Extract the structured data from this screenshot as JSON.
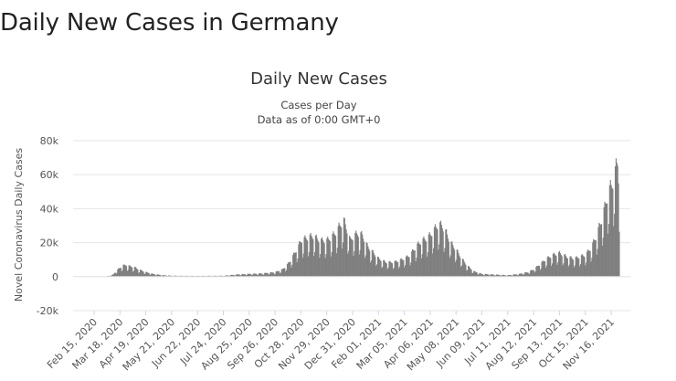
{
  "page": {
    "heading": "Daily New Cases in Germany"
  },
  "chart_data": {
    "type": "bar",
    "title": "Daily New Cases",
    "subtitle": "Cases per Day",
    "subtitle2": "Data as of 0:00 GMT+0",
    "ylabel": "Novel Coronavirus Daily Cases",
    "xlabel": "",
    "ylim": [
      -20000,
      80000
    ],
    "yticks": [
      -20000,
      0,
      20000,
      40000,
      60000,
      80000
    ],
    "ytick_labels": [
      "-20k",
      "0",
      "20k",
      "40k",
      "60k",
      "80k"
    ],
    "xtick_labels": [
      "Feb 15, 2020",
      "Mar 18, 2020",
      "Apr 19, 2020",
      "May 21, 2020",
      "Jun 22, 2020",
      "Jul 24, 2020",
      "Aug 25, 2020",
      "Sep 26, 2020",
      "Oct 28, 2020",
      "Nov 29, 2020",
      "Dec 31, 2020",
      "Feb 01, 2021",
      "Mar 05, 2021",
      "Apr 06, 2021",
      "May 08, 2021",
      "Jun 09, 2021",
      "Jul 11, 2021",
      "Aug 12, 2021",
      "Sep 13, 2021",
      "Oct 15, 2021",
      "Nov 16, 2021"
    ],
    "grid": true,
    "bar_color": "#7f7f7f",
    "x": [
      "Feb 15, 2020",
      "Mar 01, 2020",
      "Mar 09, 2020",
      "Mar 13, 2020",
      "Mar 18, 2020",
      "Mar 21, 2020",
      "Mar 25, 2020",
      "Mar 28, 2020",
      "Apr 02, 2020",
      "Apr 06, 2020",
      "Apr 10, 2020",
      "Apr 19, 2020",
      "Apr 28, 2020",
      "May 10, 2020",
      "May 21, 2020",
      "Jun 22, 2020",
      "Jul 24, 2020",
      "Aug 10, 2020",
      "Aug 25, 2020",
      "Sep 10, 2020",
      "Sep 26, 2020",
      "Oct 05, 2020",
      "Oct 10, 2020",
      "Oct 15, 2020",
      "Oct 20, 2020",
      "Oct 25, 2020",
      "Oct 28, 2020",
      "Nov 02, 2020",
      "Nov 07, 2020",
      "Nov 12, 2020",
      "Nov 17, 2020",
      "Nov 22, 2020",
      "Nov 29, 2020",
      "Dec 05, 2020",
      "Dec 11, 2020",
      "Dec 16, 2020",
      "Dec 20, 2020",
      "Dec 24, 2020",
      "Dec 28, 2020",
      "Dec 31, 2020",
      "Jan 06, 2021",
      "Jan 12, 2021",
      "Jan 18, 2021",
      "Jan 24, 2021",
      "Feb 01, 2021",
      "Feb 10, 2021",
      "Feb 20, 2021",
      "Mar 05, 2021",
      "Mar 12, 2021",
      "Mar 20, 2021",
      "Mar 27, 2021",
      "Apr 01, 2021",
      "Apr 06, 2021",
      "Apr 11, 2021",
      "Apr 16, 2021",
      "Apr 21, 2021",
      "Apr 26, 2021",
      "May 01, 2021",
      "May 08, 2021",
      "May 15, 2021",
      "May 22, 2021",
      "May 30, 2021",
      "Jun 09, 2021",
      "Jul 11, 2021",
      "Jul 25, 2021",
      "Aug 05, 2021",
      "Aug 12, 2021",
      "Aug 20, 2021",
      "Aug 28, 2021",
      "Sep 05, 2021",
      "Sep 13, 2021",
      "Sep 22, 2021",
      "Oct 01, 2021",
      "Oct 08, 2021",
      "Oct 15, 2021",
      "Oct 22, 2021",
      "Oct 28, 2021",
      "Nov 03, 2021",
      "Nov 08, 2021",
      "Nov 12, 2021",
      "Nov 16, 2021",
      "Nov 19, 2021",
      "Nov 22, 2021",
      "Nov 24, 2021",
      "Nov 26, 2021"
    ],
    "values": [
      0,
      100,
      1000,
      3000,
      5000,
      6000,
      6500,
      6000,
      5500,
      5000,
      4000,
      2500,
      1500,
      800,
      500,
      400,
      500,
      1200,
      1500,
      1800,
      2500,
      4000,
      6000,
      9000,
      13000,
      17000,
      20000,
      21000,
      22000,
      22500,
      21000,
      20000,
      20000,
      22000,
      25000,
      29000,
      31000,
      26000,
      20000,
      22000,
      24000,
      23000,
      17000,
      14000,
      10000,
      8000,
      8000,
      10000,
      12000,
      17000,
      20000,
      21000,
      23000,
      26000,
      29000,
      28000,
      24000,
      19000,
      15000,
      10000,
      6000,
      3000,
      1500,
      800,
      1500,
      2500,
      4000,
      7000,
      10000,
      12000,
      13000,
      11000,
      10000,
      11000,
      12000,
      16000,
      22000,
      30000,
      38000,
      46000,
      50000,
      54000,
      60000,
      64000,
      48000
    ]
  }
}
